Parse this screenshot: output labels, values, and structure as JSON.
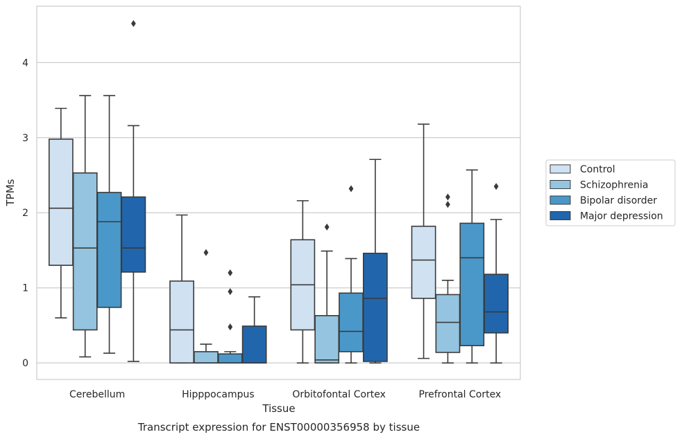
{
  "chart_data": {
    "type": "boxplot",
    "xlabel": "Tissue",
    "ylabel": "TPMs",
    "caption": "Transcript expression for ENST00000356958 by tissue",
    "ylim": [
      -0.22,
      4.75
    ],
    "yticks": [
      0,
      1,
      2,
      3,
      4
    ],
    "grid": "horizontal",
    "legend_position": "right",
    "categories": [
      "Cerebellum",
      "Hipppocampus",
      "Orbitofontal Cortex",
      "Prefrontal Cortex"
    ],
    "series": [
      {
        "name": "Control",
        "color": "#d0e1f2",
        "boxes": [
          {
            "whislo": 0.6,
            "q1": 1.3,
            "med": 2.06,
            "q3": 2.98,
            "whishi": 3.39,
            "fliers": []
          },
          {
            "whislo": 0.0,
            "q1": 0.0,
            "med": 0.44,
            "q3": 1.09,
            "whishi": 1.97,
            "fliers": []
          },
          {
            "whislo": 0.0,
            "q1": 0.44,
            "med": 1.04,
            "q3": 1.64,
            "whishi": 2.16,
            "fliers": []
          },
          {
            "whislo": 0.06,
            "q1": 0.86,
            "med": 1.37,
            "q3": 1.82,
            "whishi": 3.18,
            "fliers": []
          }
        ]
      },
      {
        "name": "Schizophrenia",
        "color": "#94c4df",
        "boxes": [
          {
            "whislo": 0.08,
            "q1": 0.44,
            "med": 1.53,
            "q3": 2.53,
            "whishi": 3.56,
            "fliers": []
          },
          {
            "whislo": 0.0,
            "q1": 0.0,
            "med": 0.0,
            "q3": 0.15,
            "whishi": 0.25,
            "fliers": [
              1.47
            ]
          },
          {
            "whislo": 0.0,
            "q1": 0.0,
            "med": 0.04,
            "q3": 0.63,
            "whishi": 1.49,
            "fliers": [
              1.81
            ]
          },
          {
            "whislo": 0.0,
            "q1": 0.14,
            "med": 0.54,
            "q3": 0.91,
            "whishi": 1.1,
            "fliers": [
              2.11,
              2.21
            ]
          }
        ]
      },
      {
        "name": "Bipolar disorder",
        "color": "#4a98c9",
        "boxes": [
          {
            "whislo": 0.13,
            "q1": 0.74,
            "med": 1.88,
            "q3": 2.27,
            "whishi": 3.56,
            "fliers": []
          },
          {
            "whislo": 0.0,
            "q1": 0.0,
            "med": 0.0,
            "q3": 0.12,
            "whishi": 0.15,
            "fliers": [
              0.48,
              0.95,
              1.2
            ]
          },
          {
            "whislo": 0.0,
            "q1": 0.15,
            "med": 0.42,
            "q3": 0.93,
            "whishi": 1.39,
            "fliers": [
              2.32
            ]
          },
          {
            "whislo": 0.0,
            "q1": 0.23,
            "med": 1.4,
            "q3": 1.86,
            "whishi": 2.57,
            "fliers": []
          }
        ]
      },
      {
        "name": "Major depression",
        "color": "#2166ac",
        "boxes": [
          {
            "whislo": 0.02,
            "q1": 1.21,
            "med": 1.53,
            "q3": 2.21,
            "whishi": 3.16,
            "fliers": [
              4.52
            ]
          },
          {
            "whislo": 0.0,
            "q1": 0.0,
            "med": 0.0,
            "q3": 0.49,
            "whishi": 0.88,
            "fliers": []
          },
          {
            "whislo": 0.0,
            "q1": 0.02,
            "med": 0.86,
            "q3": 1.46,
            "whishi": 2.71,
            "fliers": []
          },
          {
            "whislo": 0.0,
            "q1": 0.4,
            "med": 0.68,
            "q3": 1.18,
            "whishi": 1.91,
            "fliers": [
              2.35
            ]
          }
        ]
      }
    ]
  }
}
